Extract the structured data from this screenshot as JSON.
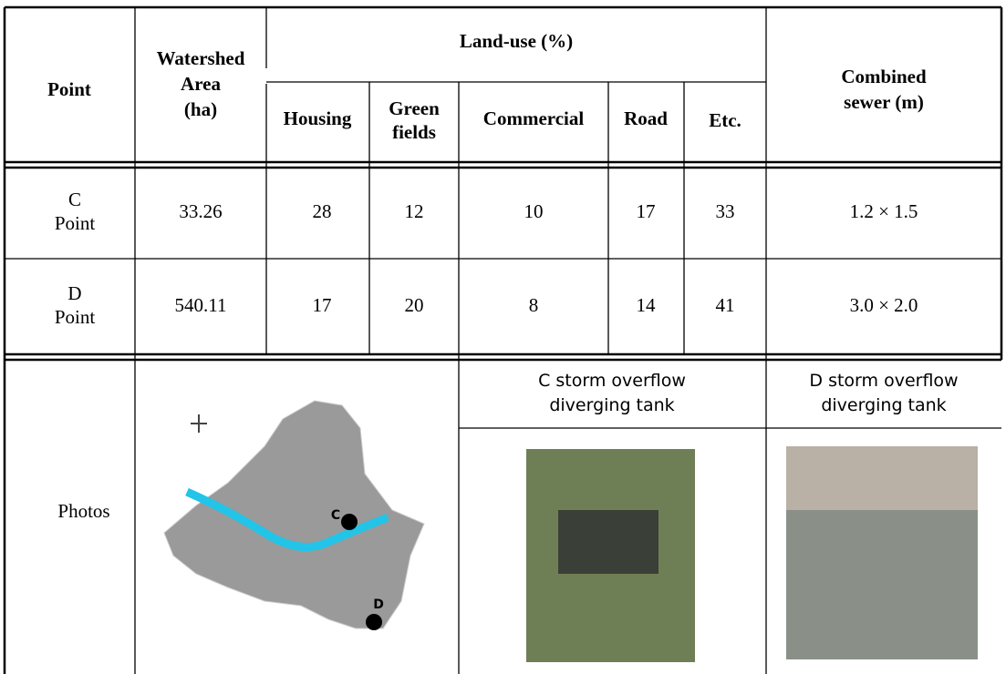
{
  "header": {
    "point": "Point",
    "watershed": [
      "Watershed",
      "Area",
      "(ha)"
    ],
    "land_use": "Land-use (%)",
    "housing": "Housing",
    "green": [
      "Green",
      "fields"
    ],
    "commercial": "Commercial",
    "road": "Road",
    "etc": "Etc.",
    "sewer": [
      "Combined",
      "sewer (m)"
    ]
  },
  "rows": [
    {
      "point": [
        "C",
        "Point"
      ],
      "area": 33.26,
      "housing": 28,
      "green": 12,
      "commercial": 10,
      "road": 17,
      "etc": 33,
      "sewer": "1.2 × 1.5"
    },
    {
      "point": [
        "D",
        "Point"
      ],
      "area": 540.11,
      "housing": 17,
      "green": 20,
      "commercial": 8,
      "road": 14,
      "etc": 41,
      "sewer": "3.0 × 2.0"
    }
  ],
  "photos": {
    "label": "Photos",
    "map_labels": [
      "C",
      "D"
    ],
    "c_caption": [
      "C storm overflow",
      "diverging tank"
    ],
    "d_caption": [
      "D storm overflow",
      "diverging tank"
    ]
  }
}
